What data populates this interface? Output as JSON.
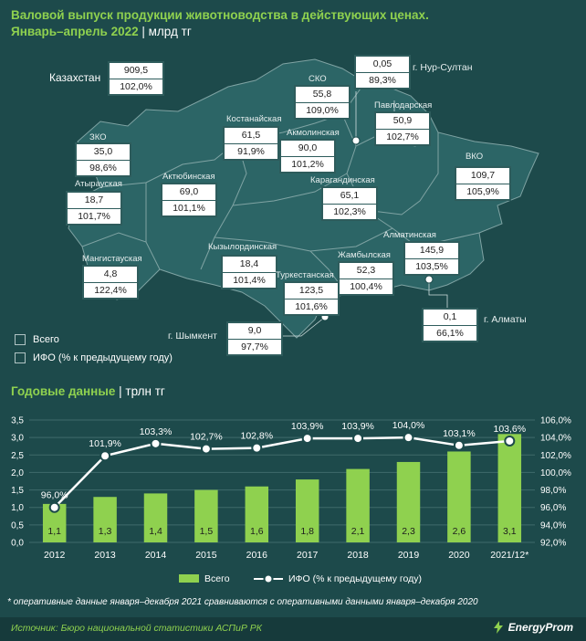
{
  "header": {
    "title_line1": "Валовой выпуск продукции животноводства в действующих ценах.",
    "title_line2": "Январь–апрель 2022",
    "unit": "| млрд тг"
  },
  "map": {
    "country": {
      "name": "Казахстан",
      "total": "909,5",
      "ifo": "102,0%"
    },
    "regions": [
      {
        "id": "zko",
        "name": "ЗКО",
        "total": "35,0",
        "ifo": "98,6%"
      },
      {
        "id": "atyrau",
        "name": "Атырауская",
        "total": "18,7",
        "ifo": "101,7%"
      },
      {
        "id": "mangystau",
        "name": "Мангистауская",
        "total": "4,8",
        "ifo": "122,4%"
      },
      {
        "id": "aktobe",
        "name": "Актюбинская",
        "total": "69,0",
        "ifo": "101,1%"
      },
      {
        "id": "kostanay",
        "name": "Костанайская",
        "total": "61,5",
        "ifo": "91,9%"
      },
      {
        "id": "sko",
        "name": "СКО",
        "total": "55,8",
        "ifo": "109,0%"
      },
      {
        "id": "akmola",
        "name": "Акмолинская",
        "total": "90,0",
        "ifo": "101,2%"
      },
      {
        "id": "nur_sultan",
        "name": "г. Нур-Султан",
        "total": "0,05",
        "ifo": "89,3%"
      },
      {
        "id": "pavlodar",
        "name": "Павлодарская",
        "total": "50,9",
        "ifo": "102,7%"
      },
      {
        "id": "vko",
        "name": "ВКО",
        "total": "109,7",
        "ifo": "105,9%"
      },
      {
        "id": "karaganda",
        "name": "Карагандинская",
        "total": "65,1",
        "ifo": "102,3%"
      },
      {
        "id": "kyzylorda",
        "name": "Кызылординская",
        "total": "18,4",
        "ifo": "101,4%"
      },
      {
        "id": "turkestan",
        "name": "Туркестанская",
        "total": "123,5",
        "ifo": "101,6%"
      },
      {
        "id": "zhambyl",
        "name": "Жамбылская",
        "total": "52,3",
        "ifo": "100,4%"
      },
      {
        "id": "almaty_obl",
        "name": "Алматинская",
        "total": "145,9",
        "ifo": "103,5%"
      },
      {
        "id": "almaty",
        "name": "г. Алматы",
        "total": "0,1",
        "ifo": "66,1%"
      },
      {
        "id": "shymkent",
        "name": "г. Шымкент",
        "total": "9,0",
        "ifo": "97,7%"
      }
    ],
    "legend": {
      "total": "Всего",
      "ifo": "ИФО (% к предыдущему году)"
    }
  },
  "annual": {
    "title": "Годовые данные",
    "unit": "| трлн тг"
  },
  "chart_data": {
    "type": "bar",
    "categories": [
      "2012",
      "2013",
      "2014",
      "2015",
      "2016",
      "2017",
      "2018",
      "2019",
      "2020",
      "2021/12*"
    ],
    "series": [
      {
        "name": "Всего",
        "type": "bar",
        "axis": "left",
        "values": [
          1.1,
          1.3,
          1.4,
          1.5,
          1.6,
          1.8,
          2.1,
          2.3,
          2.6,
          3.1
        ],
        "labels": [
          "1,1",
          "1,3",
          "1,4",
          "1,5",
          "1,6",
          "1,8",
          "2,1",
          "2,3",
          "2,6",
          "3,1"
        ]
      },
      {
        "name": "ИФО (% к предыдущему году)",
        "type": "line",
        "axis": "right",
        "values": [
          96.0,
          101.9,
          103.3,
          102.7,
          102.8,
          103.9,
          103.9,
          104.0,
          103.1,
          103.6
        ],
        "labels": [
          "96,0%",
          "101,9%",
          "103,3%",
          "102,7%",
          "102,8%",
          "103,9%",
          "103,9%",
          "104,0%",
          "103,1%",
          "103,6%"
        ]
      }
    ],
    "ylim_left": [
      0,
      3.5
    ],
    "yticks_left": [
      "0,0",
      "0,5",
      "1,0",
      "1,5",
      "2,0",
      "2,5",
      "3,0",
      "3,5"
    ],
    "ylim_right": [
      92,
      106
    ],
    "yticks_right": [
      "92,0%",
      "94,0%",
      "96,0%",
      "98,0%",
      "100,0%",
      "102,0%",
      "104,0%",
      "106,0%"
    ],
    "grid": true,
    "legend_position": "bottom",
    "colors": {
      "bar": "#8fd14f",
      "line": "#ffffff",
      "grid": "#3f6b6b"
    }
  },
  "footnote": "* оперативные данные января–декабря 2021 сравниваются с оперативными данными января–декабря 2020",
  "source": "Источник: Бюро национальной статистики АСПиР РК",
  "brand": "EnergyProm"
}
